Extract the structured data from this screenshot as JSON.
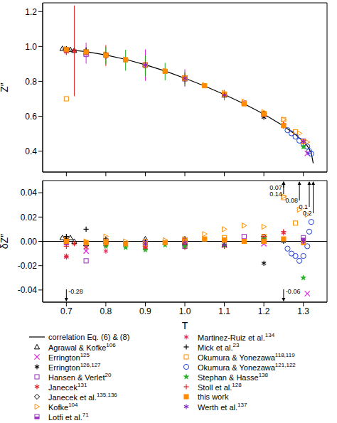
{
  "chart_data": [
    {
      "type": "scatter",
      "y_label": "Z″",
      "xlim": [
        0.64,
        1.36
      ],
      "xticks": [
        0.7,
        0.8,
        0.9,
        {
          "value": 1,
          "label": "1.0"
        },
        1.1,
        1.2,
        1.3
      ],
      "ylim": [
        0.28,
        1.25
      ],
      "yticks": [
        0.4,
        0.6,
        0.8,
        {
          "value": 1,
          "label": "1.0"
        },
        1.2
      ],
      "tick_labels": "y",
      "grid": false,
      "series": [
        {
          "name": "correlation Eq. (6) & (8)",
          "type": "line",
          "line_style": "solid",
          "color": "#000000",
          "x": [
            0.69,
            0.7,
            0.75,
            0.8,
            0.85,
            0.9,
            0.95,
            1.0,
            1.05,
            1.1,
            1.15,
            1.2,
            1.25,
            1.28,
            1.3,
            1.31,
            1.32,
            1.325
          ],
          "values": [
            0.985,
            0.982,
            0.97,
            0.951,
            0.926,
            0.895,
            0.859,
            0.818,
            0.773,
            0.724,
            0.671,
            0.612,
            0.544,
            0.495,
            0.455,
            0.43,
            0.39,
            0.33
          ]
        },
        {
          "name": "Agrawal & Kofke",
          "ref": "106",
          "color": "#000000",
          "marker": "triangle_open",
          "x": [
            0.69,
            0.7,
            0.71,
            0.72,
            0.75,
            0.9,
            1.0,
            1.1
          ],
          "values": [
            0.988,
            0.984,
            0.982,
            0.977,
            0.968,
            0.897,
            0.82,
            0.721
          ]
        },
        {
          "name": "Errington",
          "ref": "125",
          "color": "#e020e0",
          "marker": "x",
          "x": [
            0.75,
            0.9,
            1.0,
            1.2,
            1.31
          ],
          "values": [
            0.962,
            0.893,
            0.819,
            0.61,
            0.387
          ],
          "error": [
            0.06,
            0.09,
            0.05,
            0.02,
            0.01
          ]
        },
        {
          "name": "Errington",
          "ref": "126,127",
          "color": "#000000",
          "marker": "asterisk",
          "x": [
            0.7,
            0.8,
            0.9,
            1.0,
            1.1,
            1.2,
            1.25,
            1.3
          ],
          "values": [
            0.983,
            0.95,
            0.892,
            0.817,
            0.724,
            0.594,
            0.544,
            0.456
          ]
        },
        {
          "name": "Hansen & Verlet",
          "ref": "20",
          "color": "#9b30c0",
          "marker": "square_open",
          "x": [
            0.75,
            1.0,
            1.15
          ],
          "values": [
            0.954,
            0.814,
            0.675
          ]
        },
        {
          "name": "Janecek",
          "ref": "131",
          "color": "#e02020",
          "marker": "asterisk",
          "x": [
            0.7,
            0.72,
            0.8,
            0.9,
            1.0,
            1.1
          ],
          "values": [
            0.97,
            0.975,
            0.948,
            0.89,
            0.816,
            0.72
          ],
          "error": [
            0.02,
            0.26,
            0.06,
            0.05,
            0.03,
            0.02
          ]
        },
        {
          "name": "Janecek et al.",
          "ref": "135,136",
          "color": "#000000",
          "marker": "diamond_open",
          "x": [
            0.7,
            0.8,
            1.0,
            1.2
          ],
          "values": [
            0.983,
            0.95,
            0.816,
            0.616
          ]
        },
        {
          "name": "Kofke",
          "ref": "104",
          "color": "#ff8c00",
          "marker": "triangle_right_open",
          "x": [
            0.7,
            0.75,
            0.8,
            0.85,
            0.9,
            0.95,
            1.0,
            1.05,
            1.1,
            1.15,
            1.2,
            1.25,
            1.29,
            1.31
          ],
          "values": [
            0.984,
            0.97,
            0.955,
            0.926,
            0.892,
            0.86,
            0.82,
            0.779,
            0.734,
            0.684,
            0.624,
            0.581,
            0.502,
            0.452
          ]
        },
        {
          "name": "Lotfi et al.",
          "ref": "71",
          "color": "#9b30c0",
          "marker": "square_half",
          "x": [
            0.7,
            0.8,
            0.9,
            1.0,
            1.1,
            1.2,
            1.3
          ],
          "values": [
            0.981,
            0.951,
            0.894,
            0.818,
            0.725,
            0.612,
            0.458
          ]
        },
        {
          "name": "Martinez-Ruiz et al.",
          "ref": "134",
          "color": "#e02050",
          "marker": "asterisk",
          "x": [
            0.7,
            0.75,
            0.8,
            0.9,
            1.0,
            1.1,
            1.2,
            1.25
          ],
          "values": [
            0.969,
            0.965,
            0.943,
            0.889,
            0.813,
            0.72,
            0.612,
            0.551
          ]
        },
        {
          "name": "Mick et al.",
          "ref": "23",
          "color": "#000000",
          "marker": "plus",
          "x": [
            0.7,
            0.75,
            0.8,
            0.9,
            1.0,
            1.1,
            1.2
          ],
          "values": [
            0.986,
            0.98,
            0.953,
            0.895,
            0.819,
            0.725,
            0.614
          ]
        },
        {
          "name": "Okumura & Yonezawa",
          "ref": "118,119",
          "color": "#ff8c00",
          "marker": "square_open",
          "x": [
            0.7,
            0.8,
            0.9,
            1.0,
            1.1,
            1.2,
            1.25,
            1.28
          ],
          "values": [
            0.7,
            0.951,
            0.895,
            0.819,
            0.727,
            0.616,
            0.58,
            0.51
          ]
        },
        {
          "name": "Okumura & Yonezawa",
          "ref": "121,122",
          "color": "#2040d0",
          "marker": "circle_open",
          "x": [
            1.26,
            1.27,
            1.28,
            1.29,
            1.3,
            1.31,
            1.315,
            1.32
          ],
          "values": [
            0.52,
            0.502,
            0.483,
            0.46,
            0.443,
            0.426,
            0.4,
            0.385
          ]
        },
        {
          "name": "Stephan & Hasse",
          "ref": "138",
          "color": "#20b020",
          "marker": "star",
          "x": [
            0.8,
            0.85,
            0.9,
            0.95,
            1.0,
            1.1,
            1.2,
            1.3
          ],
          "values": [
            0.947,
            0.921,
            0.888,
            0.856,
            0.814,
            0.721,
            0.614,
            0.425
          ],
          "error": [
            0.05,
            0.06,
            0.06,
            0.05,
            0.04,
            0.03,
            0.02,
            0.01
          ]
        },
        {
          "name": "Stoll et al.",
          "ref": "128",
          "color": "#e02020",
          "marker": "plus",
          "x": [
            0.7,
            0.8,
            0.9,
            1.0,
            1.1,
            1.2,
            1.25
          ],
          "values": [
            0.978,
            0.949,
            0.891,
            0.817,
            0.724,
            0.616,
            0.552
          ]
        },
        {
          "name": "this work",
          "color": "#ff8c00",
          "marker": "square",
          "x": [
            0.7,
            0.75,
            0.8,
            0.85,
            0.9,
            0.95,
            1.0,
            1.05,
            1.1,
            1.15,
            1.2,
            1.25,
            1.3
          ],
          "values": [
            0.982,
            0.969,
            0.95,
            0.924,
            0.893,
            0.858,
            0.818,
            0.775,
            0.725,
            0.671,
            0.612,
            0.546,
            0.454
          ]
        },
        {
          "name": "Werth et al.",
          "ref": "137",
          "color": "#8020c0",
          "marker": "asterisk",
          "x": [
            0.9,
            1.0,
            1.1,
            1.3
          ],
          "values": [
            0.893,
            0.817,
            0.721,
            0.455
          ]
        }
      ]
    },
    {
      "type": "scatter",
      "x_label": "T",
      "y_label": "δZ″",
      "xlim": [
        0.64,
        1.36
      ],
      "xticks": [
        0.7,
        0.8,
        0.9,
        {
          "value": 1,
          "label": "1.0"
        },
        1.1,
        1.2,
        1.3
      ],
      "ylim": [
        -0.05,
        0.05
      ],
      "yticks": [
        -0.04,
        -0.02,
        {
          "value": 0,
          "label": "0.00"
        },
        0.02,
        0.04
      ],
      "grid": false,
      "legend": "bottom",
      "annotations": [
        {
          "x": 0.7,
          "y": -0.28,
          "label": "-0.28"
        },
        {
          "x": 1.25,
          "y": -0.06,
          "label": "-0.06"
        },
        {
          "x": 1.25,
          "y": 0.07,
          "label": "0.07"
        },
        {
          "x": 1.25,
          "y": 0.14,
          "label": "0.14"
        },
        {
          "x": 1.29,
          "y": 0.08,
          "label": "0.08"
        },
        {
          "x": 1.315,
          "y": 0.1,
          "label": "0.1"
        },
        {
          "x": 1.325,
          "y": 0.2,
          "label": "0.2"
        }
      ],
      "series": [
        {
          "name": "correlation Eq. (6) & (8)",
          "type": "line",
          "line_style": "solid",
          "color": "#000000",
          "x": [
            0.64,
            1.36
          ],
          "values": [
            0,
            0
          ]
        },
        {
          "name": "Agrawal & Kofke",
          "ref": "106",
          "color": "#000000",
          "marker": "triangle_open",
          "x": [
            0.69,
            0.7,
            0.71,
            0.72,
            0.75,
            0.9,
            1.0,
            1.1
          ],
          "values": [
            0.003,
            0.002,
            0.003,
            0.0,
            -0.002,
            0.002,
            0.002,
            -0.003
          ]
        },
        {
          "name": "Errington",
          "ref": "125",
          "color": "#e020e0",
          "marker": "x",
          "x": [
            0.75,
            0.9,
            1.0,
            1.2,
            1.31
          ],
          "values": [
            -0.008,
            -0.002,
            0.001,
            -0.002,
            -0.043
          ]
        },
        {
          "name": "Errington",
          "ref": "126,127",
          "color": "#000000",
          "marker": "asterisk",
          "x": [
            0.7,
            0.8,
            0.9,
            1.0,
            1.1,
            1.2,
            1.25,
            1.3
          ],
          "values": [
            0.001,
            -0.001,
            -0.003,
            -0.001,
            0.0,
            -0.018,
            0.0,
            0.001
          ]
        },
        {
          "name": "Hansen & Verlet",
          "ref": "20",
          "color": "#9b30c0",
          "marker": "square_open",
          "x": [
            0.75,
            1.0,
            1.15
          ],
          "values": [
            -0.016,
            -0.004,
            0.004
          ]
        },
        {
          "name": "Janecek",
          "ref": "131",
          "color": "#e02020",
          "marker": "asterisk",
          "x": [
            0.7,
            0.72,
            0.8,
            0.9,
            1.0,
            1.1
          ],
          "values": [
            -0.012,
            -0.002,
            -0.003,
            -0.005,
            -0.002,
            -0.004
          ]
        },
        {
          "name": "Janecek et al.",
          "ref": "135,136",
          "color": "#000000",
          "marker": "diamond_open",
          "x": [
            0.7,
            0.8,
            1.0,
            1.2
          ],
          "values": [
            0.001,
            -0.001,
            -0.002,
            0.004
          ]
        },
        {
          "name": "Kofke",
          "ref": "104",
          "color": "#ff8c00",
          "marker": "triangle_right_open",
          "x": [
            0.7,
            0.75,
            0.8,
            0.85,
            0.9,
            0.95,
            1.0,
            1.05,
            1.1,
            1.15,
            1.2,
            1.25,
            1.29,
            1.31
          ],
          "values": [
            0.002,
            0.0,
            0.004,
            0.0,
            -0.003,
            0.001,
            0.002,
            0.006,
            0.01,
            0.013,
            0.012,
            0.037,
            0.026,
            0.022
          ]
        },
        {
          "name": "Lotfi et al.",
          "ref": "71",
          "color": "#9b30c0",
          "marker": "square_half",
          "x": [
            0.7,
            0.8,
            0.9,
            1.0,
            1.1,
            1.2,
            1.3
          ],
          "values": [
            -0.001,
            0.0,
            -0.001,
            0.0,
            0.001,
            0.0,
            0.003
          ]
        },
        {
          "name": "Martinez-Ruiz et al.",
          "ref": "134",
          "color": "#e02050",
          "marker": "asterisk",
          "x": [
            0.7,
            0.75,
            0.8,
            0.9,
            1.0,
            1.1,
            1.2,
            1.25
          ],
          "values": [
            -0.013,
            -0.005,
            -0.008,
            -0.006,
            -0.005,
            -0.004,
            0.0,
            0.007
          ]
        },
        {
          "name": "Mick et al.",
          "ref": "23",
          "color": "#000000",
          "marker": "plus",
          "x": [
            0.7,
            0.75,
            0.8,
            0.9,
            1.0,
            1.1,
            1.2
          ],
          "values": [
            0.004,
            0.01,
            0.002,
            0.0,
            0.001,
            0.001,
            0.002
          ]
        },
        {
          "name": "Okumura & Yonezawa",
          "ref": "118,119",
          "color": "#ff8c00",
          "marker": "square_open",
          "x": [
            0.8,
            0.9,
            1.0,
            1.1,
            1.2,
            1.25,
            1.28
          ],
          "values": [
            0.0,
            0.0,
            0.001,
            0.003,
            0.004,
            0.036,
            0.015
          ]
        },
        {
          "name": "Okumura & Yonezawa",
          "ref": "121,122",
          "color": "#2040d0",
          "marker": "circle_open",
          "x": [
            1.26,
            1.27,
            1.28,
            1.29,
            1.3,
            1.31,
            1.315,
            1.32
          ],
          "values": [
            -0.006,
            -0.01,
            -0.012,
            -0.016,
            -0.012,
            -0.004,
            0.008,
            0.016
          ]
        },
        {
          "name": "Stephan & Hasse",
          "ref": "138",
          "color": "#20b020",
          "marker": "star",
          "x": [
            0.8,
            0.85,
            0.9,
            0.95,
            1.0,
            1.1,
            1.2,
            1.3
          ],
          "values": [
            -0.004,
            -0.005,
            -0.007,
            -0.003,
            -0.004,
            -0.003,
            0.002,
            -0.03
          ]
        },
        {
          "name": "Stoll et al.",
          "ref": "128",
          "color": "#e02020",
          "marker": "plus",
          "x": [
            0.7,
            0.8,
            0.9,
            1.0,
            1.1,
            1.2,
            1.25
          ],
          "values": [
            -0.004,
            -0.002,
            -0.004,
            -0.001,
            0.0,
            0.004,
            0.008
          ]
        },
        {
          "name": "this work",
          "color": "#ff8c00",
          "marker": "square",
          "x": [
            0.7,
            0.75,
            0.8,
            0.85,
            0.9,
            0.95,
            1.0,
            1.05,
            1.1,
            1.15,
            1.2,
            1.25,
            1.3
          ],
          "values": [
            0.0,
            -0.001,
            -0.001,
            -0.002,
            -0.002,
            -0.001,
            0.0,
            0.002,
            0.001,
            0.0,
            0.0,
            0.002,
            -0.001
          ]
        },
        {
          "name": "Werth et al.",
          "ref": "137",
          "color": "#8020c0",
          "marker": "asterisk",
          "x": [
            0.9,
            1.0,
            1.1,
            1.3
          ],
          "values": [
            -0.002,
            -0.001,
            -0.003,
            0.0
          ]
        }
      ]
    }
  ]
}
